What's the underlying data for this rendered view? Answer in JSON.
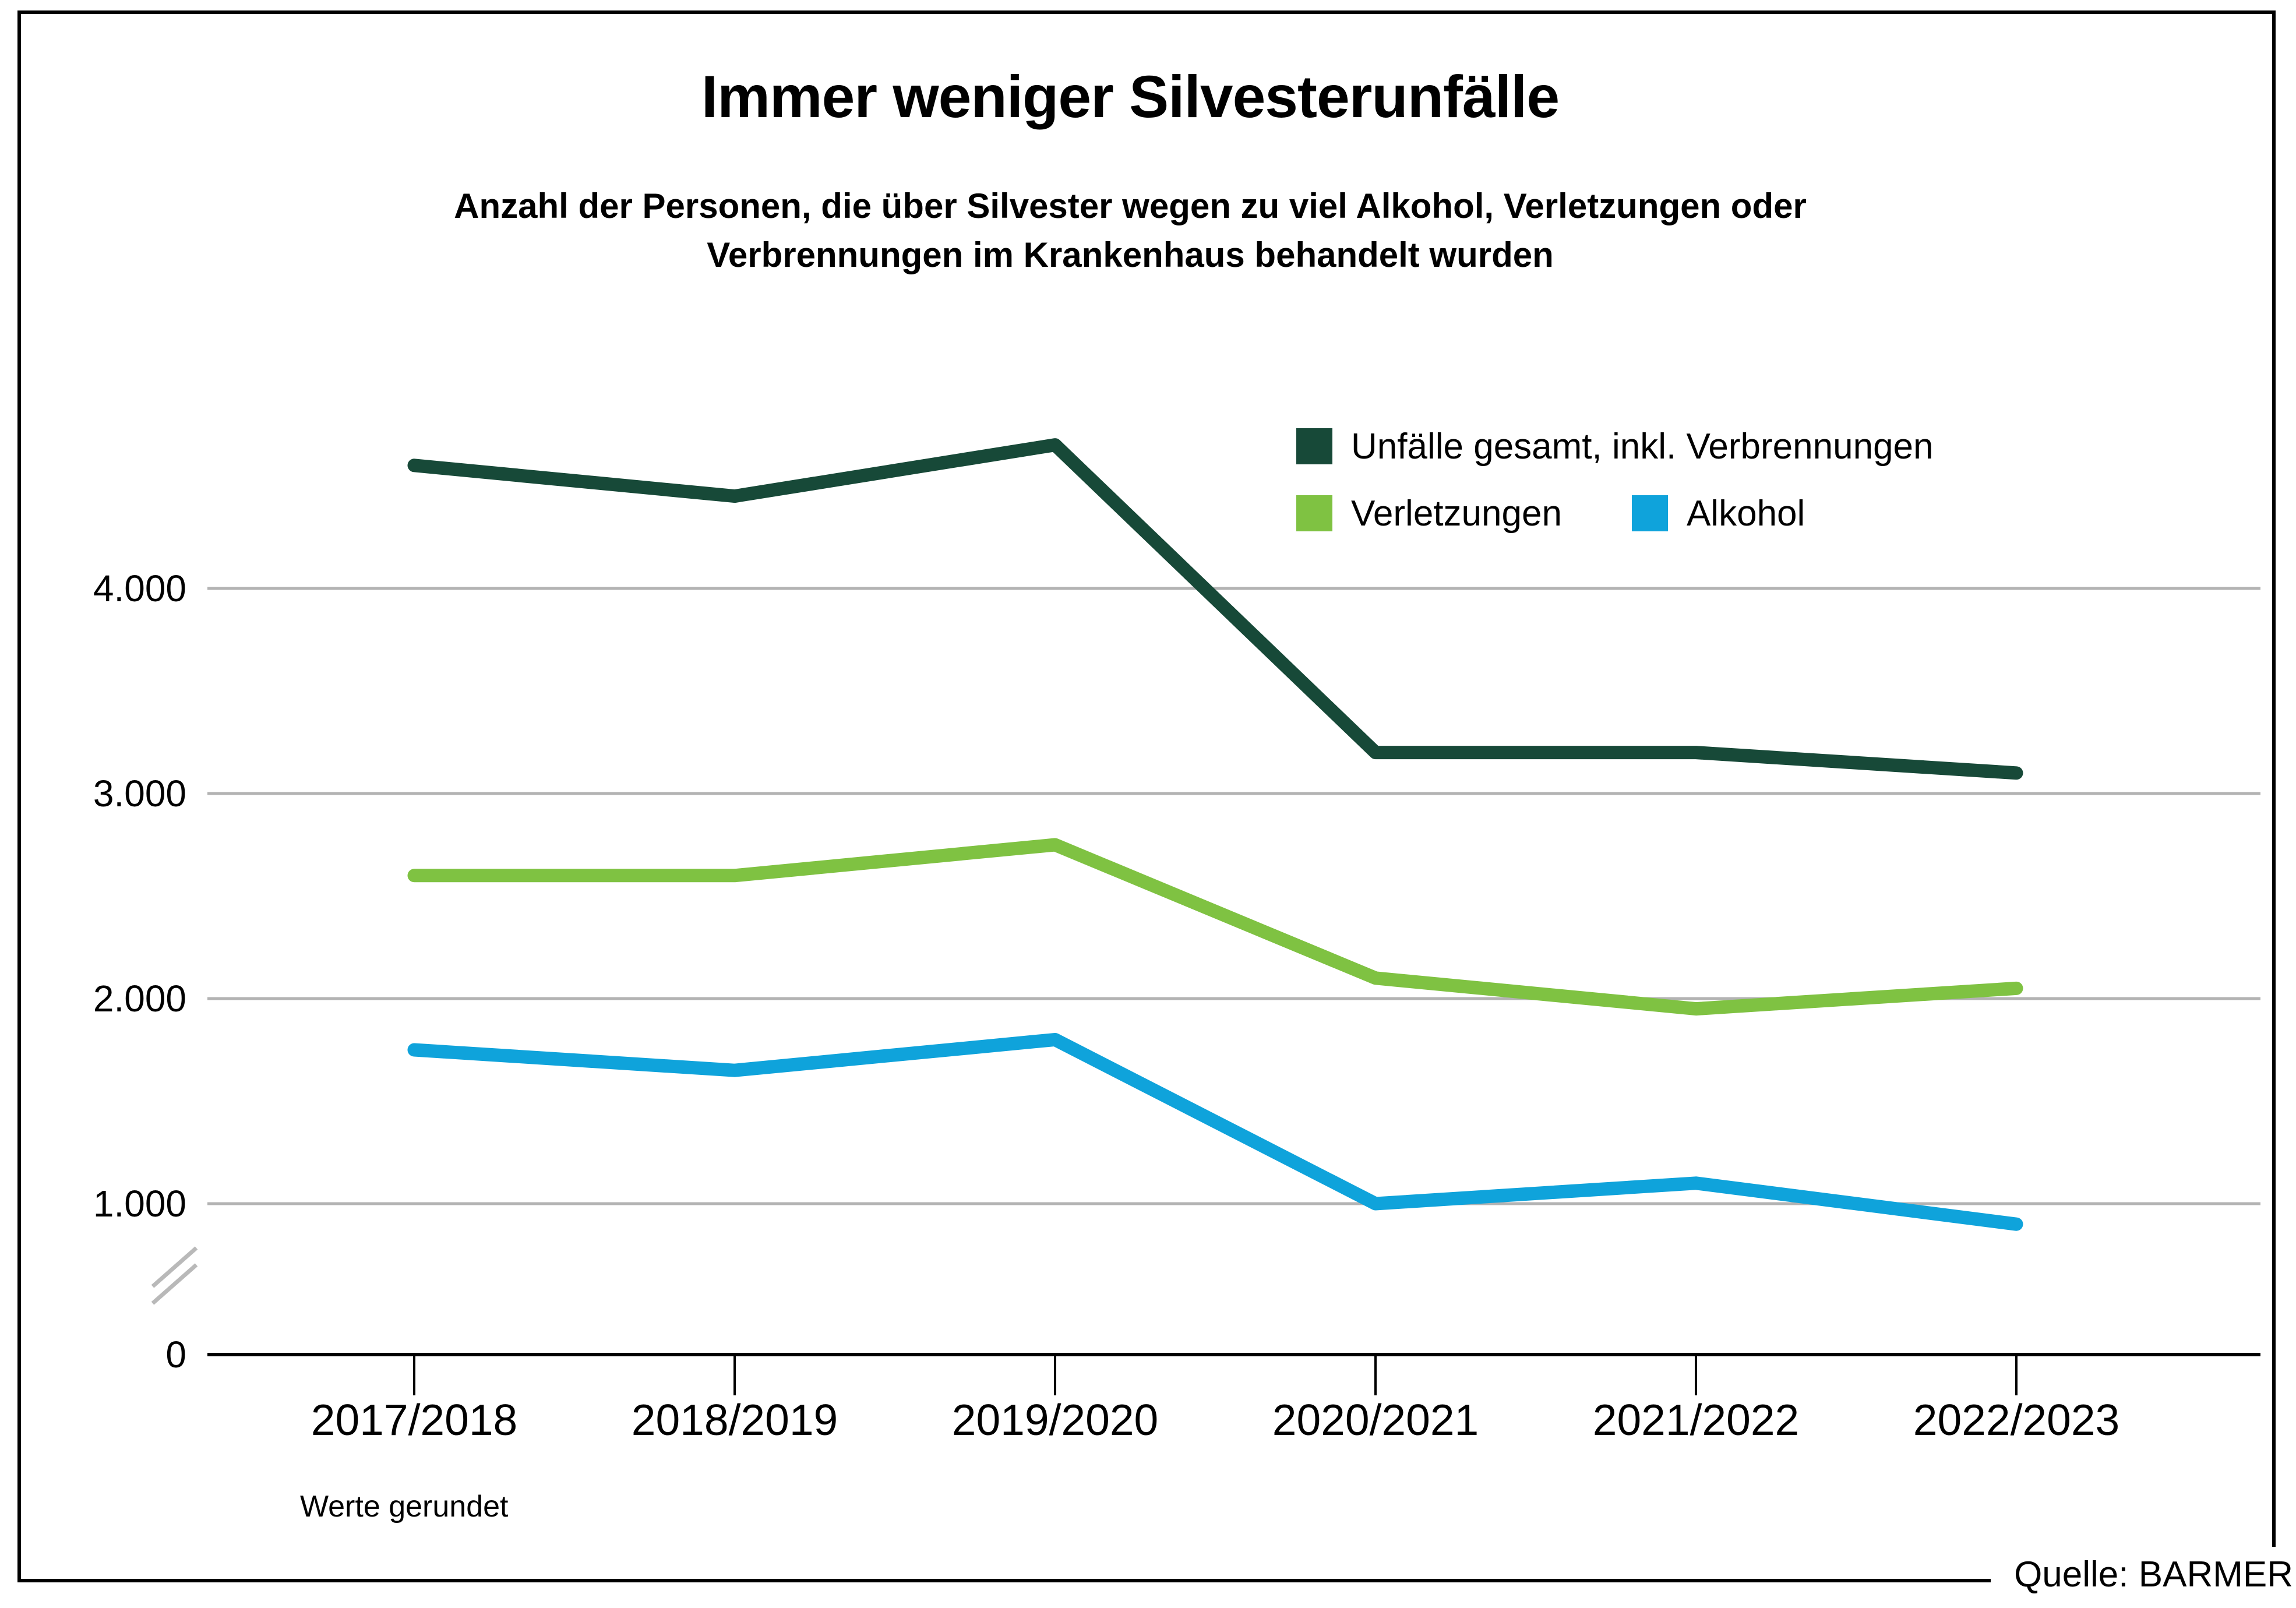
{
  "title": "Immer weniger Silvesterunfälle",
  "subtitle": [
    "Anzahl der Personen, die über Silvester wegen zu viel Alkohol, Verletzungen oder",
    "Verbrennungen im Krankenhaus behandelt wurden"
  ],
  "footnote": "Werte gerundet",
  "source": "Quelle: BARMER",
  "colors": {
    "grid": "#b3b3b3",
    "axis": "#000000",
    "break_mark": "#b9b9b9"
  },
  "chart_data": {
    "type": "line",
    "categories": [
      "2017/2018",
      "2018/2019",
      "2019/2020",
      "2020/2021",
      "2021/2022",
      "2022/2023"
    ],
    "series": [
      {
        "name": "Unfälle gesamt, inkl. Verbrennungen",
        "color": "#174938",
        "values": [
          4600,
          4450,
          4700,
          3200,
          3200,
          3100
        ]
      },
      {
        "name": "Verletzungen",
        "color": "#7fc242",
        "values": [
          2600,
          2600,
          2750,
          2100,
          1950,
          2050
        ]
      },
      {
        "name": "Alkohol",
        "color": "#0fa3db",
        "values": [
          1750,
          1650,
          1800,
          1000,
          1100,
          900
        ]
      }
    ],
    "y_ticks": [
      {
        "label": "4.000",
        "value": 4000
      },
      {
        "label": "3.000",
        "value": 3000
      },
      {
        "label": "2.000",
        "value": 2000
      },
      {
        "label": "1.000",
        "value": 1000
      },
      {
        "label": "0",
        "value": 0
      }
    ],
    "ylim": [
      0,
      5000
    ],
    "grid": true,
    "axis_break": true,
    "legend_position": "top-right"
  }
}
